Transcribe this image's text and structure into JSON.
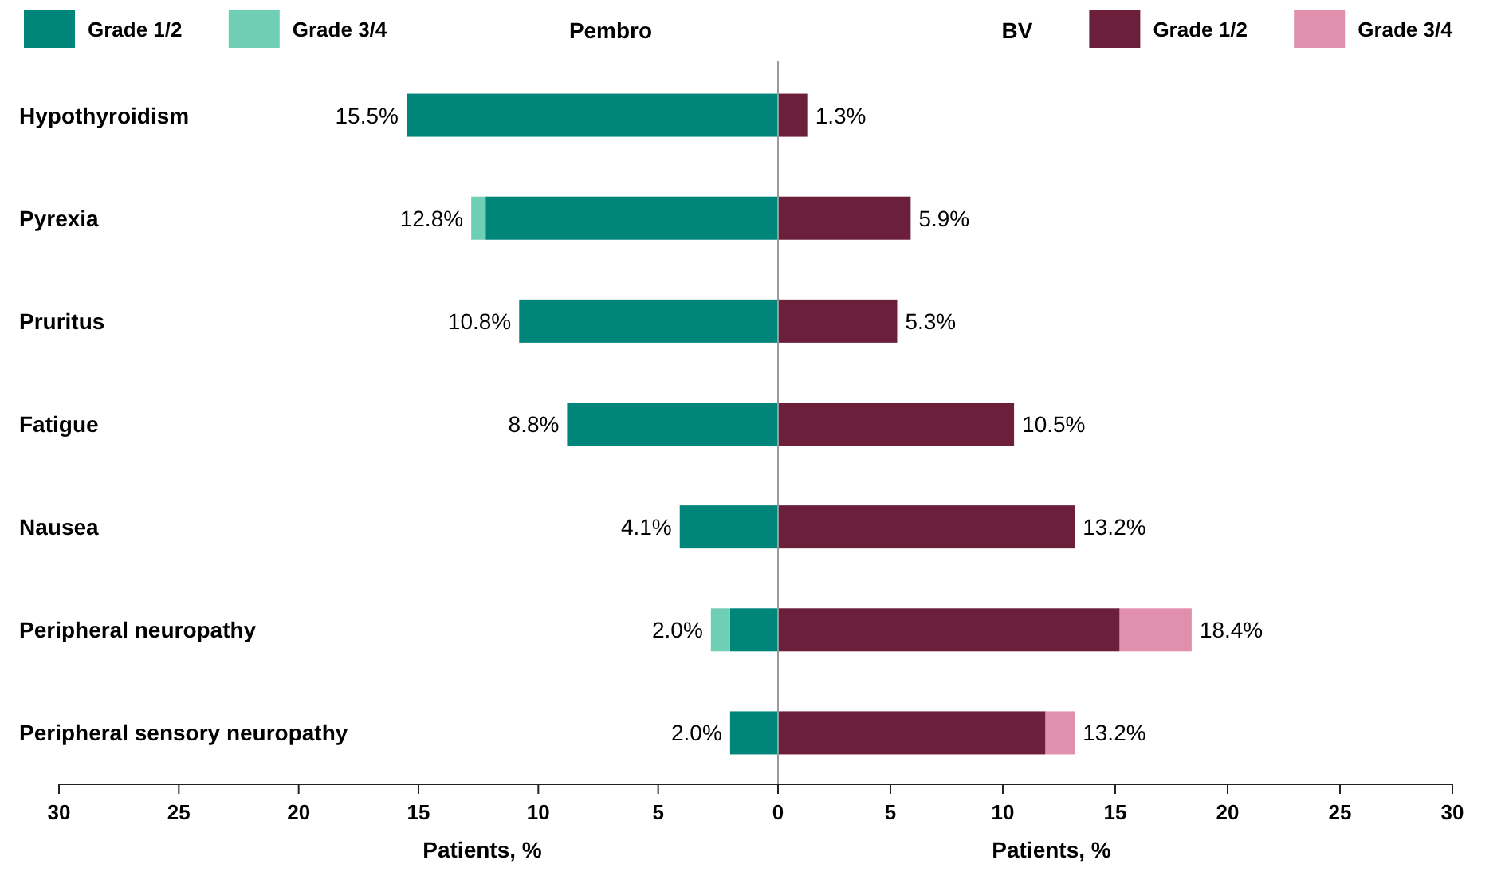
{
  "chart_data": [
    {
      "type": "bar",
      "orientation": "horizontal",
      "stacked": true,
      "title": "Pembro",
      "xlabel": "Patients, %",
      "categories": [
        "Hypothyroidism",
        "Pyrexia",
        "Pruritus",
        "Fatigue",
        "Nausea",
        "Peripheral neuropathy",
        "Peripheral sensory neuropathy"
      ],
      "series": [
        {
          "name": "Grade 1/2",
          "color": "#00857a",
          "values": [
            15.5,
            12.2,
            10.8,
            8.8,
            4.1,
            2.0,
            2.0
          ],
          "value_labels": [
            null,
            null,
            null,
            null,
            null,
            "2.0%",
            null
          ]
        },
        {
          "name": "Grade 3/4",
          "color": "#6fcfb5",
          "values": [
            0,
            0.6,
            0,
            0,
            0,
            0.8,
            0
          ]
        }
      ],
      "totals": [
        "15.5%",
        "12.8%",
        "10.8%",
        "8.8%",
        "4.1%",
        null,
        "2.0%"
      ],
      "xlim": [
        30,
        0
      ],
      "xticks": [
        30,
        25,
        20,
        15,
        10,
        5,
        {
          "value": 0,
          "label": null
        }
      ],
      "legend": "top left"
    },
    {
      "type": "bar",
      "orientation": "horizontal",
      "stacked": true,
      "title": "BV",
      "xlabel": "Patients, %",
      "categories": [
        null,
        null,
        null,
        null,
        null,
        null,
        null
      ],
      "series": [
        {
          "name": "Grade 1/2",
          "color": "#6b1f3a",
          "values": [
            1.3,
            5.9,
            5.3,
            10.5,
            13.2,
            15.2,
            11.9
          ]
        },
        {
          "name": "Grade 3/4",
          "color": "#e08fac",
          "values": [
            0,
            0,
            0,
            0,
            0,
            3.2,
            1.3
          ]
        }
      ],
      "totals": [
        "1.3%",
        "5.9%",
        "5.3%",
        "10.5%",
        "13.2%",
        "18.4%",
        "13.2%"
      ],
      "xlim": [
        0,
        30
      ],
      "xticks": [
        0,
        5,
        10,
        15,
        20,
        25,
        30
      ],
      "tick_labels": "x",
      "legend": "top right"
    }
  ]
}
